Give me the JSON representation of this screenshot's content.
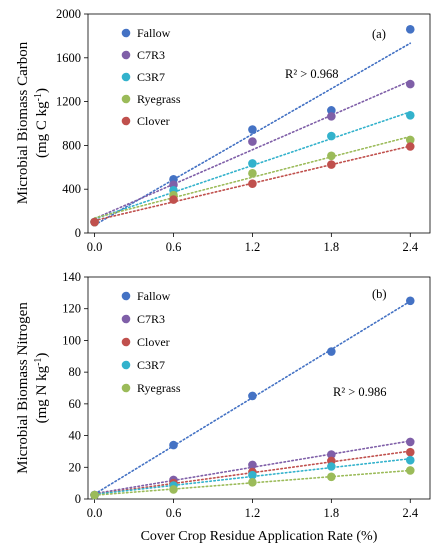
{
  "xlabel": "Cover Crop Residue Application Rate (%)",
  "chart_data": [
    {
      "type": "scatter",
      "panel_label": "(a)",
      "ylabel_line1": "Microbial Biomass Carbon",
      "ylabel_unit_base": "(mg C kg",
      "ylabel_unit_sup": "-1",
      "ylabel_unit_end": ")",
      "annotation": "R² > 0.968",
      "x_ticks": [
        "0.0",
        "0.6",
        "1.2",
        "1.8",
        "2.4"
      ],
      "y_ticks": [
        "0",
        "400",
        "800",
        "1200",
        "1600",
        "2000"
      ],
      "xlim": [
        -0.05,
        2.55
      ],
      "ylim": [
        0,
        2000
      ],
      "legend_position": "top-left",
      "trendlines": "dotted",
      "series": [
        {
          "name": "Fallow",
          "color": "#4472c4",
          "x": [
            0,
            0.6,
            1.2,
            1.8,
            2.4
          ],
          "y": [
            100,
            490,
            945,
            1120,
            1860
          ]
        },
        {
          "name": "C7R3",
          "color": "#7f5fa8",
          "x": [
            0,
            0.6,
            1.2,
            1.8,
            2.4
          ],
          "y": [
            100,
            440,
            835,
            1065,
            1360
          ]
        },
        {
          "name": "C3R7",
          "color": "#33b2cc",
          "x": [
            0,
            0.6,
            1.2,
            1.8,
            2.4
          ],
          "y": [
            100,
            390,
            635,
            885,
            1075
          ]
        },
        {
          "name": "Ryegrass",
          "color": "#9bbb59",
          "x": [
            0,
            0.6,
            1.2,
            1.8,
            2.4
          ],
          "y": [
            100,
            345,
            545,
            705,
            850
          ]
        },
        {
          "name": "Clover",
          "color": "#c0504d",
          "x": [
            0,
            0.6,
            1.2,
            1.8,
            2.4
          ],
          "y": [
            100,
            305,
            450,
            625,
            790
          ]
        }
      ]
    },
    {
      "type": "scatter",
      "panel_label": "(b)",
      "ylabel_line1": "Microbial Biomass Nitrogen",
      "ylabel_unit_base": "(mg N kg",
      "ylabel_unit_sup": "-1",
      "ylabel_unit_end": ")",
      "annotation": "R² > 0.986",
      "x_ticks": [
        "0.0",
        "0.6",
        "1.2",
        "1.8",
        "2.4"
      ],
      "y_ticks": [
        "0",
        "20",
        "40",
        "60",
        "80",
        "100",
        "120",
        "140"
      ],
      "xlim": [
        -0.05,
        2.55
      ],
      "ylim": [
        0,
        140
      ],
      "legend_position": "top-left",
      "trendlines": "dotted",
      "series": [
        {
          "name": "Fallow",
          "color": "#4472c4",
          "x": [
            0,
            0.6,
            1.2,
            1.8,
            2.4
          ],
          "y": [
            2.5,
            34,
            65,
            93,
            125
          ]
        },
        {
          "name": "C7R3",
          "color": "#7f5fa8",
          "x": [
            0,
            0.6,
            1.2,
            1.8,
            2.4
          ],
          "y": [
            2.5,
            12,
            21.5,
            28,
            36
          ]
        },
        {
          "name": "Clover",
          "color": "#c0504d",
          "x": [
            0,
            0.6,
            1.2,
            1.8,
            2.4
          ],
          "y": [
            2.5,
            10,
            17,
            24,
            29.5
          ]
        },
        {
          "name": "C3R7",
          "color": "#33b2cc",
          "x": [
            0,
            0.6,
            1.2,
            1.8,
            2.4
          ],
          "y": [
            2.5,
            8.5,
            15,
            20.5,
            24.5
          ]
        },
        {
          "name": "Ryegrass",
          "color": "#9bbb59",
          "x": [
            0,
            0.6,
            1.2,
            1.8,
            2.4
          ],
          "y": [
            2.5,
            6,
            10.5,
            14,
            18
          ]
        }
      ]
    }
  ]
}
